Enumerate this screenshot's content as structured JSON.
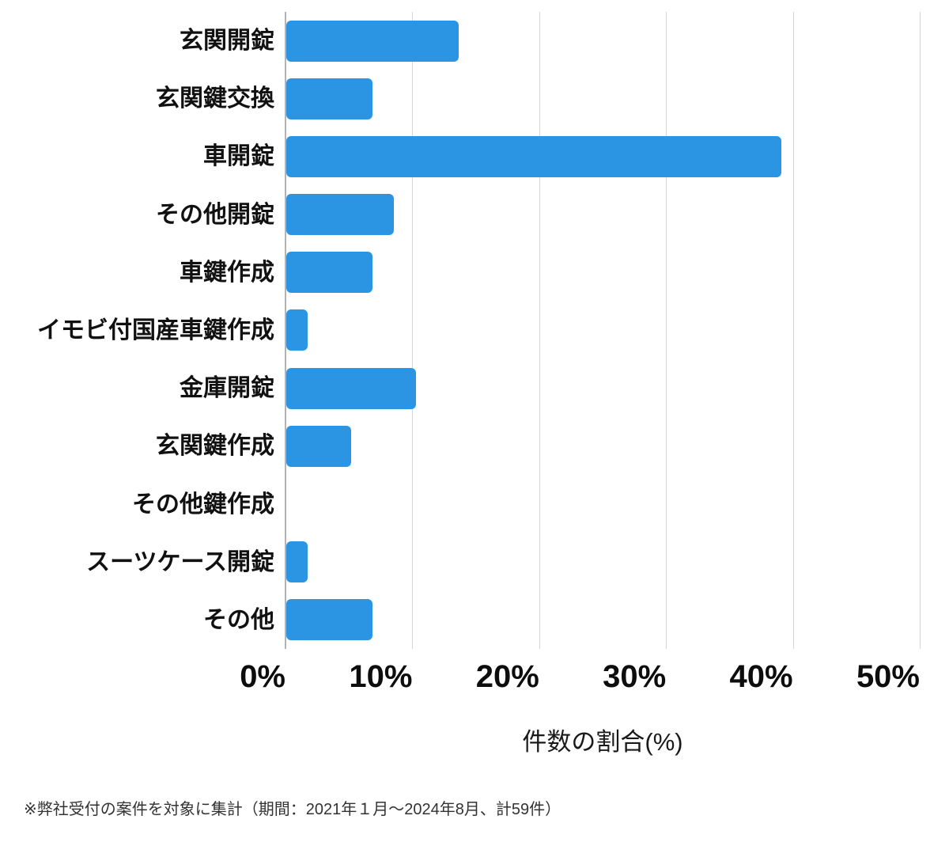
{
  "chart_data": {
    "type": "bar",
    "orientation": "horizontal",
    "title": "",
    "categories": [
      "玄関開錠",
      "玄関鍵交換",
      "車開錠",
      "その他開錠",
      "車鍵作成",
      "イモビ付国産車鍵作成",
      "金庫開錠",
      "玄関鍵作成",
      "その他鍵作成",
      "スーツケース開錠",
      "その他"
    ],
    "values": [
      13.6,
      6.8,
      39.0,
      8.5,
      6.8,
      1.7,
      10.2,
      5.1,
      0,
      1.7,
      6.8
    ],
    "value_unit": "%",
    "xlabel": "件数の割合(%)",
    "ylabel": "",
    "x_ticks": [
      "0%",
      "10%",
      "20%",
      "30%",
      "40%",
      "50%"
    ],
    "x_tick_values": [
      0,
      10,
      20,
      30,
      40,
      50
    ],
    "xlim": [
      0,
      50
    ],
    "grid": "vertical",
    "legend": "none",
    "bar_color": "#2b95e4",
    "gridline_color": "#d6d6d6",
    "axis_line_color": "#b3b3b3",
    "footnote": "※弊社受付の案件を対象に集計（期間：2021年１月～2024年8月、計59件）"
  }
}
